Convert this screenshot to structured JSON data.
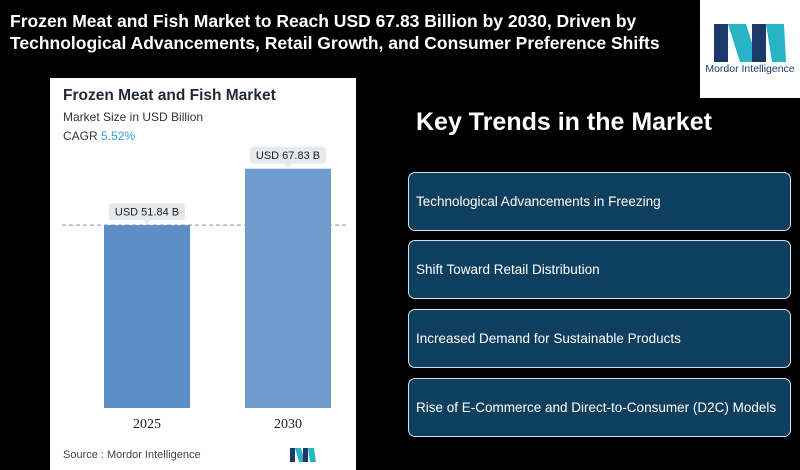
{
  "headline": "Frozen Meat and Fish Market to Reach USD 67.83 Billion by 2030, Driven by Technological Advancements, Retail Growth, and Consumer Preference Shifts",
  "logo": {
    "text": "Mordor Intelligence",
    "icon": "mordor-intelligence-logo-icon",
    "colors": [
      "#1b3a6b",
      "#27b4c4"
    ]
  },
  "card": {
    "title": "Frozen Meat and Fish Market",
    "subtitle": "Market Size in USD Billion",
    "cagr_label": "CAGR",
    "cagr_value": "5.52%",
    "source": "Source :  Mordor Intelligence"
  },
  "chart_data": {
    "type": "bar",
    "categories": [
      "2025",
      "2030"
    ],
    "values": [
      51.84,
      67.83
    ],
    "data_labels": [
      "USD 51.84 B",
      "USD 67.83 B"
    ],
    "title": "Frozen Meat and Fish Market",
    "ylabel": "Market Size in USD Billion",
    "ylim": [
      0,
      72
    ],
    "reference_line": 51.84,
    "bar_color": "#5b8fc6",
    "bar_color_light": "#6f9ccd",
    "label_bg": "#e6e9ee",
    "grid": false
  },
  "trends": {
    "title": "Key Trends in the Market",
    "items": [
      "Technological Advancements in Freezing",
      "Shift Toward Retail Distribution",
      "Increased Demand for Sustainable Products",
      "Rise of E-Commerce and Direct-to-Consumer (D2C) Models"
    ]
  }
}
